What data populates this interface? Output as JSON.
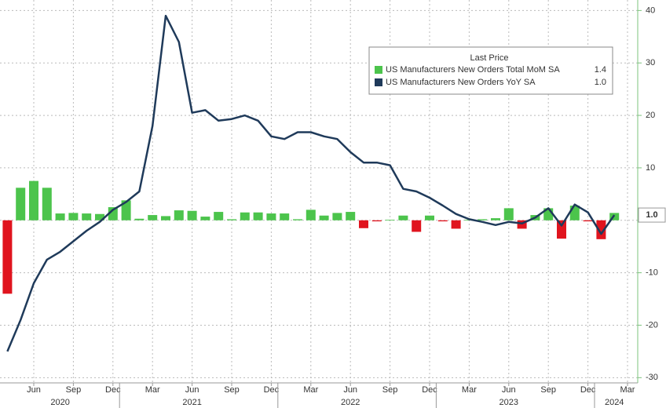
{
  "chart_data": {
    "type": "bar-line",
    "categories": [
      null,
      null,
      "Jun",
      null,
      null,
      "Sep",
      null,
      null,
      "Dec",
      null,
      null,
      "Mar",
      null,
      null,
      "Jun",
      null,
      null,
      "Sep",
      null,
      null,
      "Dec",
      null,
      null,
      "Mar",
      null,
      null,
      "Jun",
      null,
      null,
      "Sep",
      null,
      null,
      "Dec",
      null,
      null,
      "Mar",
      null,
      null,
      "Jun",
      null,
      null,
      "Sep",
      null,
      null,
      "Dec",
      null,
      null,
      "Mar"
    ],
    "year_labels": [
      null,
      null,
      null,
      null,
      "2020",
      null,
      null,
      null,
      null,
      null,
      null,
      null,
      null,
      null,
      "2021",
      null,
      null,
      null,
      null,
      null,
      null,
      null,
      null,
      null,
      null,
      null,
      "2022",
      null,
      null,
      null,
      null,
      null,
      null,
      null,
      null,
      null,
      null,
      null,
      "2023",
      null,
      null,
      null,
      null,
      null,
      null,
      null,
      "2024",
      null
    ],
    "legend_title": "Last Price",
    "series": [
      {
        "name": "US Manufacturers New Orders Total MoM SA",
        "type": "bar",
        "color": "#4cc44c",
        "negative_color": "#e0141e",
        "last_price": 1.4,
        "values": [
          -14,
          6.2,
          7.5,
          6.2,
          1.3,
          1.4,
          1.3,
          1.2,
          2.5,
          3.8,
          0.3,
          1.0,
          0.8,
          1.9,
          1.8,
          0.7,
          1.6,
          0.2,
          1.5,
          1.5,
          1.3,
          1.3,
          0.2,
          2.0,
          0.9,
          1.4,
          1.6,
          -1.5,
          -0.2,
          0.1,
          0.9,
          -2.2,
          0.9,
          -0.2,
          -1.6,
          0.1,
          0.2,
          0.4,
          2.3,
          -1.6,
          1.0,
          2.3,
          -3.5,
          2.8,
          -0.2,
          -3.6,
          1.4,
          null
        ]
      },
      {
        "name": "US Manufacturers New Orders YoY SA",
        "type": "line",
        "color": "#1f3a5a",
        "last_price": {
          "value": 1.0,
          "label": "1.0"
        },
        "values": [
          -25,
          -19,
          -12,
          -7.5,
          -6,
          -4,
          -2,
          -0.3,
          2,
          3.5,
          5.5,
          18,
          39,
          34,
          20.5,
          21,
          19,
          19.3,
          20,
          19,
          16,
          15.5,
          16.8,
          16.8,
          16,
          15.5,
          13,
          11,
          11,
          10.5,
          6,
          5.5,
          4.3,
          2.8,
          1.2,
          0.2,
          -0.3,
          -0.9,
          -0.3,
          -0.6,
          0.5,
          2.3,
          -1,
          3,
          1.5,
          -2.6,
          1.0,
          null
        ]
      }
    ],
    "ylim": [
      -31,
      42
    ],
    "yticks": [
      -30,
      -20,
      -10,
      0,
      10,
      20,
      30,
      40
    ],
    "grid": true
  }
}
